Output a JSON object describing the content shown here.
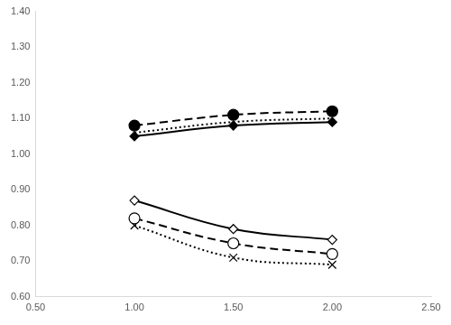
{
  "chart_data": {
    "type": "line",
    "x": [
      1.0,
      1.5,
      2.0
    ],
    "xlim": [
      0.5,
      2.5
    ],
    "xticks": [
      {
        "value": 0.5,
        "label": "0.50"
      },
      {
        "value": 1.0,
        "label": "1.00"
      },
      {
        "value": 1.5,
        "label": "1.50"
      },
      {
        "value": 2.0,
        "label": "2.00"
      },
      {
        "value": 2.5,
        "label": "2.50"
      }
    ],
    "ylim": [
      0.6,
      1.4
    ],
    "yticks": [
      {
        "value": 0.6,
        "label": "0.60"
      },
      {
        "value": 0.7,
        "label": "0.70"
      },
      {
        "value": 0.8,
        "label": "0.80"
      },
      {
        "value": 0.9,
        "label": "0.90"
      },
      {
        "value": 1.0,
        "label": "1.00"
      },
      {
        "value": 1.1,
        "label": "1.10"
      },
      {
        "value": 1.2,
        "label": "1.20"
      },
      {
        "value": 1.3,
        "label": "1.30"
      },
      {
        "value": 1.4,
        "label": "1.40"
      }
    ],
    "grid": false,
    "series": [
      {
        "color": "#000000",
        "marker": "filled_circle",
        "line_style": "dashed",
        "values": [
          1.08,
          1.11,
          1.12
        ]
      },
      {
        "color": "#000000",
        "marker": "none",
        "line_style": "dotted",
        "values": [
          1.06,
          1.09,
          1.1
        ]
      },
      {
        "color": "#000000",
        "marker": "filled_diamond",
        "line_style": "solid",
        "values": [
          1.05,
          1.08,
          1.09
        ]
      },
      {
        "color": "#000000",
        "marker": "open_diamond",
        "line_style": "solid",
        "values": [
          0.87,
          0.79,
          0.76
        ]
      },
      {
        "color": "#000000",
        "marker": "open_circle",
        "line_style": "dashed",
        "values": [
          0.82,
          0.75,
          0.72
        ]
      },
      {
        "color": "#000000",
        "marker": "x",
        "line_style": "dotted",
        "values": [
          0.8,
          0.71,
          0.69
        ]
      }
    ]
  }
}
